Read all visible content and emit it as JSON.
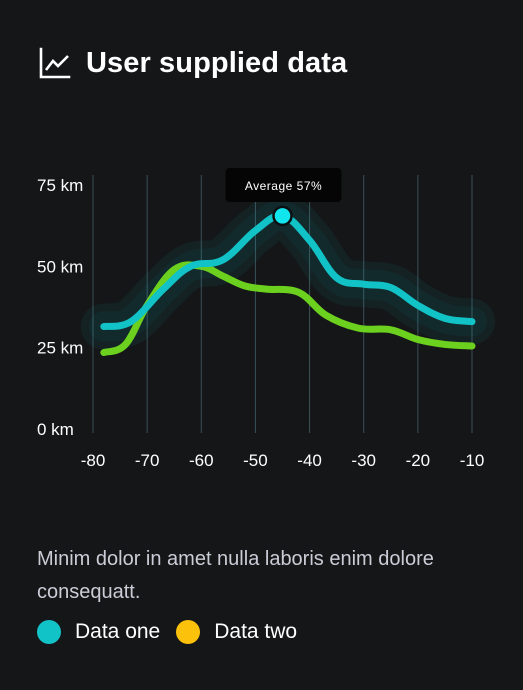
{
  "header": {
    "title": "User supplied data",
    "icon": "line-chart-icon"
  },
  "chart_data": {
    "type": "line",
    "x_ticks": [
      -80,
      -70,
      -60,
      -50,
      -40,
      -30,
      -20,
      -10
    ],
    "x_tick_labels": [
      "-80",
      "-70",
      "-60",
      "-50",
      "-40",
      "-30",
      "-20",
      "-10"
    ],
    "y_ticks": [
      0,
      25,
      50,
      75
    ],
    "y_tick_labels": [
      "0 km",
      "25 km",
      "50 km",
      "75 km"
    ],
    "xlim": [
      -80,
      -10
    ],
    "ylim": [
      0,
      75
    ],
    "grid": "vertical",
    "series": [
      {
        "name": "Data one",
        "color": "#11c2c7",
        "x": [
          -78,
          -73,
          -67,
          -62,
          -56,
          -50,
          -45,
          -40,
          -35,
          -30,
          -25,
          -20,
          -15,
          -10
        ],
        "y": [
          31.5,
          33,
          43,
          50,
          52,
          61,
          65.5,
          58,
          46.5,
          44.5,
          43.5,
          38,
          34,
          33
        ]
      },
      {
        "name": "",
        "color": "#6cd11e",
        "x": [
          -78,
          -74,
          -70,
          -65,
          -60,
          -56,
          -52,
          -48,
          -42,
          -37,
          -31,
          -25,
          -20,
          -15,
          -10
        ],
        "y": [
          23.5,
          26,
          38,
          49,
          50,
          47,
          44,
          43,
          42,
          35,
          31,
          30.5,
          27.5,
          26,
          25.5
        ]
      }
    ],
    "highlight": {
      "x": -45,
      "y": 65.5,
      "label": "Average 57%"
    }
  },
  "description": "Minim dolor in amet nulla laboris enim dolore consequatt.",
  "legend": {
    "items": [
      {
        "label": "Data one",
        "color": "#11c2c7"
      },
      {
        "label": "Data two",
        "color": "#fcc10b"
      }
    ]
  }
}
